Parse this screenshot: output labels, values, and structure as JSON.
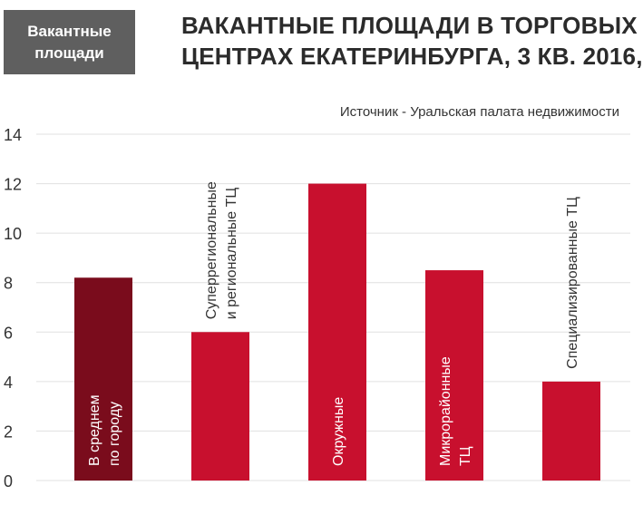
{
  "badge": {
    "line1": "Вакантные",
    "line2": "площади"
  },
  "title": {
    "line1": "ВАКАНТНЫЕ ПЛОЩАДИ В ТОРГОВЫХ",
    "line2": "ЦЕНТРАХ ЕКАТЕРИНБУРГА, 3 КВ. 2016,"
  },
  "source": "Источник - Уральская палата недвижимости",
  "colors": {
    "average": "#7a0c1c",
    "bar": "#c8102e",
    "grid": "#e0e0e0"
  },
  "chart_data": {
    "type": "bar",
    "ylim": [
      0,
      14
    ],
    "yticks": [
      0,
      2,
      4,
      6,
      8,
      10,
      12,
      14
    ],
    "grid": true,
    "categories": [
      {
        "lines": [
          "В среднем",
          "по городу"
        ],
        "value": 8.2,
        "highlight": true,
        "label_inside": true
      },
      {
        "lines": [
          "Суперрегиональные",
          "и региональные ТЦ"
        ],
        "value": 6,
        "highlight": false,
        "label_inside": false
      },
      {
        "lines": [
          "Окружные"
        ],
        "value": 12,
        "highlight": false,
        "label_inside": true
      },
      {
        "lines": [
          "Микрорайонные",
          "ТЦ"
        ],
        "value": 8.5,
        "highlight": false,
        "label_inside": true
      },
      {
        "lines": [
          "Специализированные ТЦ"
        ],
        "value": 4,
        "highlight": false,
        "label_inside": false
      }
    ]
  }
}
